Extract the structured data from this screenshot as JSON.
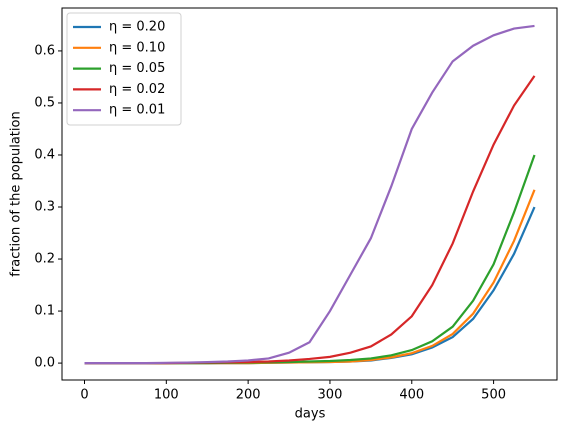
{
  "chart_data": {
    "type": "line",
    "x_label": "days",
    "y_label": "fraction of the population",
    "x": [
      0,
      25,
      50,
      75,
      100,
      125,
      150,
      175,
      200,
      225,
      250,
      275,
      300,
      325,
      350,
      375,
      400,
      425,
      450,
      475,
      500,
      525,
      550
    ],
    "series": [
      {
        "name": "η = 0.20",
        "color": "#1f77b4",
        "values": [
          0,
          0,
          0,
          0,
          0,
          0,
          0,
          0,
          0,
          0.0005,
          0.001,
          0.0015,
          0.002,
          0.003,
          0.005,
          0.01,
          0.017,
          0.03,
          0.05,
          0.085,
          0.14,
          0.21,
          0.3
        ]
      },
      {
        "name": "η = 0.10",
        "color": "#ff7f0e",
        "values": [
          0,
          0,
          0,
          0,
          0,
          0,
          0,
          0,
          0,
          0.0005,
          0.001,
          0.0015,
          0.002,
          0.003,
          0.006,
          0.011,
          0.019,
          0.033,
          0.056,
          0.095,
          0.155,
          0.235,
          0.333
        ]
      },
      {
        "name": "η = 0.05",
        "color": "#2ca02c",
        "values": [
          0,
          0,
          0,
          0,
          0,
          0,
          0,
          0.0005,
          0.001,
          0.0015,
          0.002,
          0.003,
          0.004,
          0.006,
          0.009,
          0.015,
          0.025,
          0.042,
          0.07,
          0.12,
          0.19,
          0.29,
          0.4
        ]
      },
      {
        "name": "η = 0.02",
        "color": "#d62728",
        "values": [
          0,
          0,
          0,
          0,
          0,
          0.0005,
          0.001,
          0.0015,
          0.002,
          0.003,
          0.005,
          0.008,
          0.012,
          0.02,
          0.032,
          0.055,
          0.09,
          0.15,
          0.23,
          0.33,
          0.42,
          0.495,
          0.552
        ]
      },
      {
        "name": "η = 0.01",
        "color": "#9467bd",
        "values": [
          0,
          0,
          0,
          0,
          0.0005,
          0.001,
          0.002,
          0.003,
          0.005,
          0.009,
          0.02,
          0.04,
          0.1,
          0.17,
          0.24,
          0.34,
          0.45,
          0.52,
          0.58,
          0.61,
          0.63,
          0.643,
          0.648
        ]
      }
    ],
    "xlim": [
      -27.5,
      577.5
    ],
    "xticks": [
      0,
      100,
      200,
      300,
      400,
      500
    ],
    "ylim": [
      -0.0325,
      0.6825
    ],
    "yticks": [
      {
        "value": 0,
        "label": "0.0"
      },
      {
        "value": 0.1,
        "label": "0.1"
      },
      {
        "value": 0.2,
        "label": "0.2"
      },
      {
        "value": 0.3,
        "label": "0.3"
      },
      {
        "value": 0.4,
        "label": "0.4"
      },
      {
        "value": 0.5,
        "label": "0.5"
      },
      {
        "value": 0.6,
        "label": "0.6"
      }
    ],
    "legend": "upper left"
  }
}
